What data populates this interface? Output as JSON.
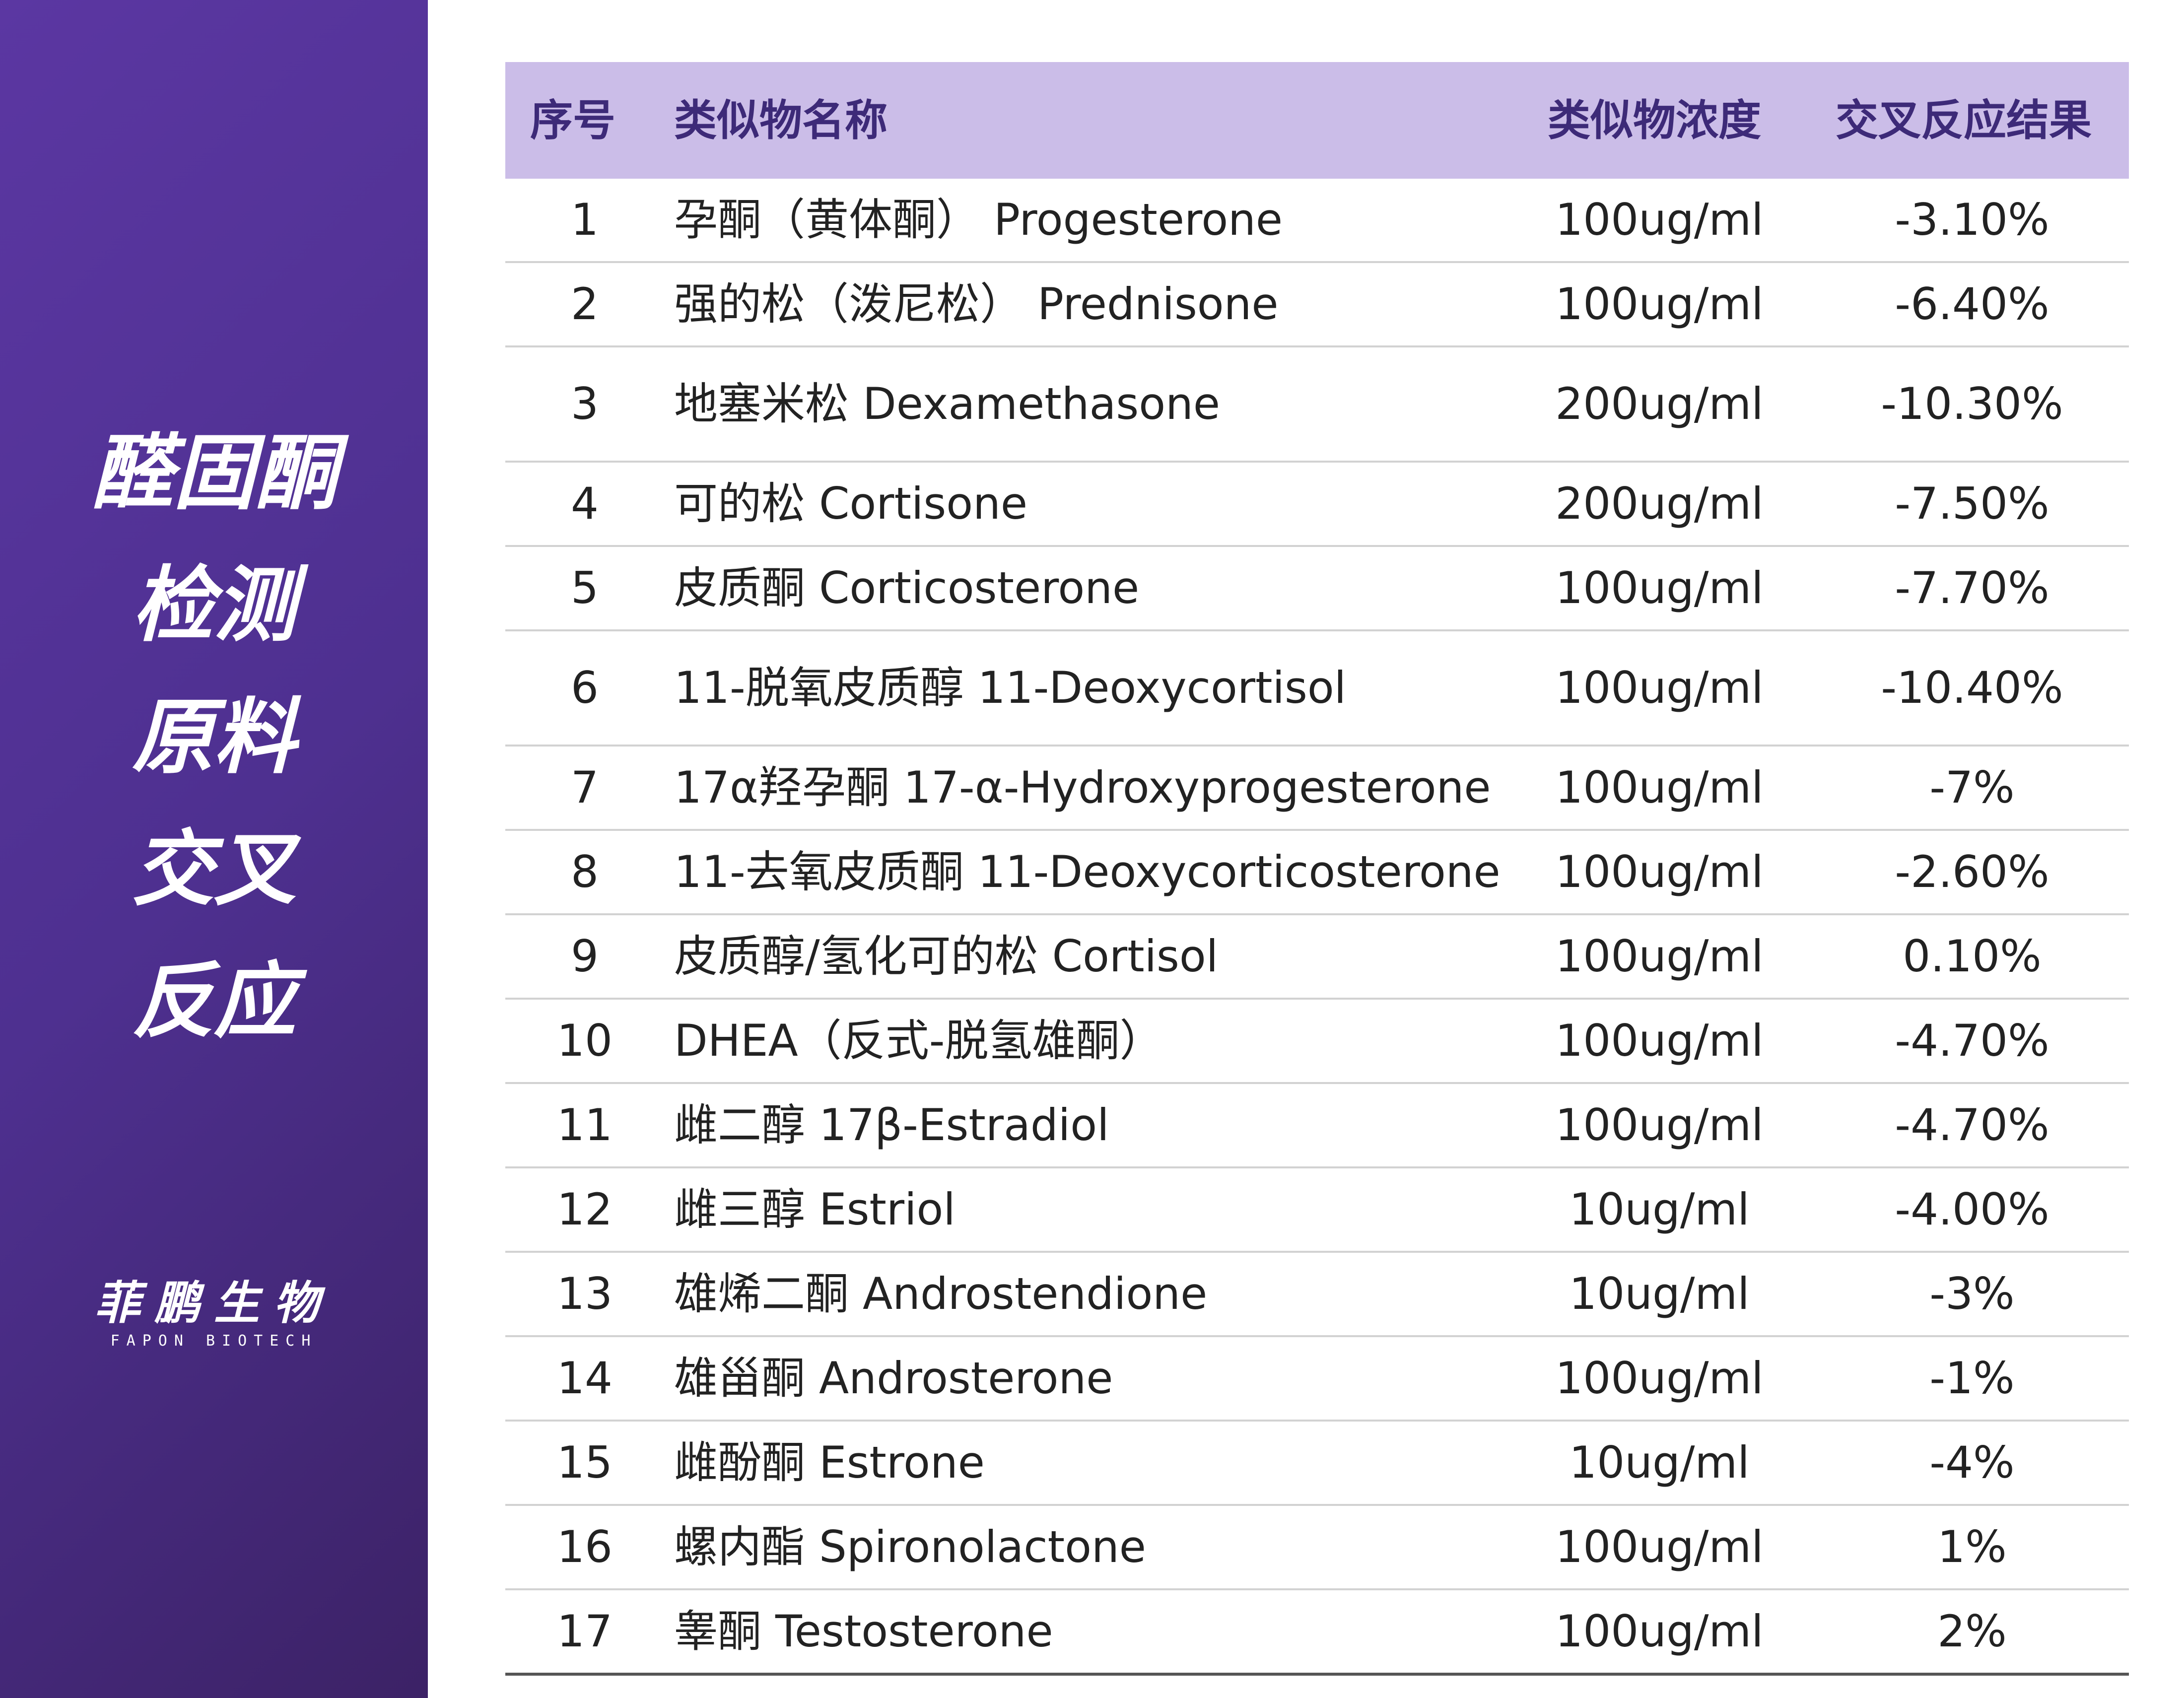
{
  "sidebar": {
    "title_lines": [
      "醛固酮",
      "检测",
      "原料",
      "交叉",
      "反应"
    ],
    "logo_cn": "菲鹏生物",
    "logo_en": "FAPON BIOTECH",
    "gradient_colors": [
      "#5b37a2",
      "#3c2266"
    ]
  },
  "table": {
    "header_bg": "#cbbde8",
    "header_color": "#3d2a78",
    "headers": [
      "序号",
      "类似物名称",
      "类似物浓度",
      "交叉反应结果"
    ],
    "rows": [
      {
        "no": "1",
        "name": "孕酮（黄体酮） Progesterone",
        "conc": "100ug/ml",
        "result": "-3.10%"
      },
      {
        "no": "2",
        "name": "强的松（泼尼松） Prednisone",
        "conc": "100ug/ml",
        "result": "-6.40%"
      },
      {
        "no": "3",
        "name": "地塞米松 Dexamethasone",
        "conc": "200ug/ml",
        "result": "-10.30%"
      },
      {
        "no": "4",
        "name": "可的松 Cortisone",
        "conc": "200ug/ml",
        "result": "-7.50%"
      },
      {
        "no": "5",
        "name": "皮质酮 Corticosterone",
        "conc": "100ug/ml",
        "result": "-7.70%"
      },
      {
        "no": "6",
        "name": "11-脱氧皮质醇 11-Deoxycortisol",
        "conc": "100ug/ml",
        "result": "-10.40%"
      },
      {
        "no": "7",
        "name": "17α羟孕酮 17-α-Hydroxyprogesterone",
        "conc": "100ug/ml",
        "result": "-7%"
      },
      {
        "no": "8",
        "name": "11-去氧皮质酮 11-Deoxycorticosterone",
        "conc": "100ug/ml",
        "result": "-2.60%"
      },
      {
        "no": "9",
        "name": "皮质醇/氢化可的松 Cortisol",
        "conc": "100ug/ml",
        "result": "0.10%"
      },
      {
        "no": "10",
        "name": "DHEA（反式-脱氢雄酮）",
        "conc": "100ug/ml",
        "result": "-4.70%"
      },
      {
        "no": "11",
        "name": "雌二醇 17β-Estradiol",
        "conc": "100ug/ml",
        "result": "-4.70%"
      },
      {
        "no": "12",
        "name": "雌三醇 Estriol",
        "conc": "10ug/ml",
        "result": "-4.00%"
      },
      {
        "no": "13",
        "name": "雄烯二酮 Androstendione",
        "conc": "10ug/ml",
        "result": "-3%"
      },
      {
        "no": "14",
        "name": "雄甾酮 Androsterone",
        "conc": "100ug/ml",
        "result": "-1%"
      },
      {
        "no": "15",
        "name": "雌酚酮 Estrone",
        "conc": "10ug/ml",
        "result": "-4%"
      },
      {
        "no": "16",
        "name": "螺内酯 Spironolactone",
        "conc": "100ug/ml",
        "result": "1%"
      },
      {
        "no": "17",
        "name": "睾酮 Testosterone",
        "conc": "100ug/ml",
        "result": "2%"
      }
    ]
  }
}
